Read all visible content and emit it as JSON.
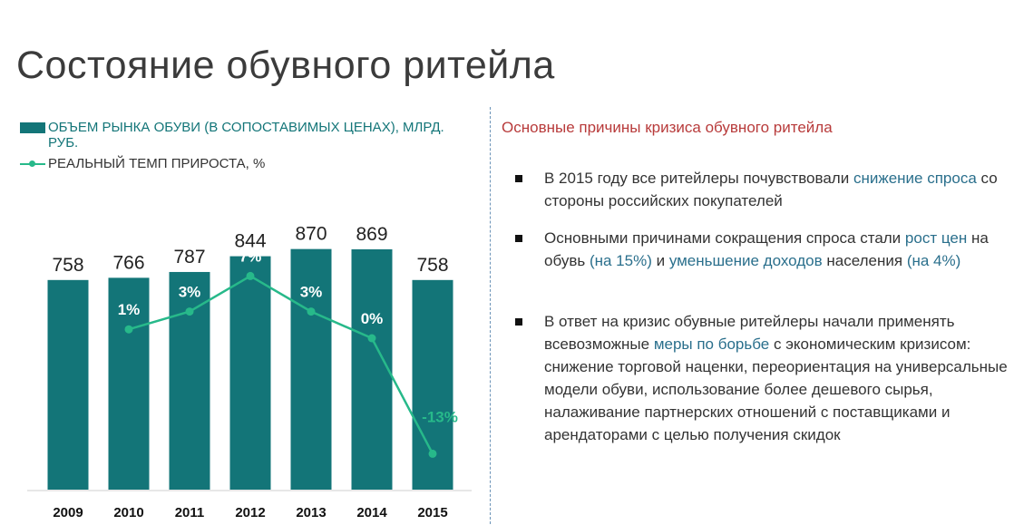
{
  "page": {
    "title": "Состояние обувного ритейла"
  },
  "legend": {
    "bars_label": "ОБЪЕМ РЫНКА ОБУВИ (В СОПОСТАВИМЫХ ЦЕНАХ), МЛРД. РУБ.",
    "line_label": "РЕАЛЬНЫЙ ТЕМП ПРИРОСТА, %"
  },
  "colors": {
    "bar": "#137578",
    "line": "#27b98a",
    "heading_red": "#b83b3b",
    "highlight": "#2a6f8c"
  },
  "chart_data": {
    "type": "bar",
    "categories": [
      "2009",
      "2010",
      "2011",
      "2012",
      "2013",
      "2014",
      "2015"
    ],
    "series": [
      {
        "type": "bar",
        "values": [
          758,
          766,
          787,
          844,
          870,
          869,
          758
        ],
        "labels": [
          "758",
          "766",
          "787",
          "844",
          "870",
          "869",
          "758"
        ]
      },
      {
        "type": "line",
        "values": [
          null,
          1,
          3,
          7,
          3,
          0,
          -13
        ],
        "labels": [
          "",
          "1%",
          "3%",
          "7%",
          "3%",
          "0%",
          "-13%"
        ]
      }
    ],
    "ylim": [
      0,
      1000
    ],
    "y2lim": [
      -15,
      20
    ],
    "legend_position": "top-left",
    "grid": false
  },
  "reasons": {
    "heading": "Основные причины кризиса обувного ритейла",
    "bullets": [
      {
        "segments": [
          {
            "text": "В 2015 году все ритейлеры почувствовали ",
            "hl": false
          },
          {
            "text": "снижение спроса",
            "hl": true
          },
          {
            "text": " со стороны  российских покупателей",
            "hl": false
          }
        ]
      },
      {
        "segments": [
          {
            "text": "Основными причинами сокращения спроса стали ",
            "hl": false
          },
          {
            "text": "рост цен",
            "hl": true
          },
          {
            "text": " на обувь ",
            "hl": false
          },
          {
            "text": "(на 15%)",
            "hl": true
          },
          {
            "text": " и ",
            "hl": false
          },
          {
            "text": "уменьшение доходов",
            "hl": true
          },
          {
            "text": " населения ",
            "hl": false
          },
          {
            "text": "(на 4%)",
            "hl": true
          }
        ]
      },
      {
        "segments": [
          {
            "text": "В ответ на кризис обувные ритейлеры начали применять всевозможные ",
            "hl": false
          },
          {
            "text": "меры по борьбе",
            "hl": true
          },
          {
            "text": " с экономическим кризисом: снижение торговой наценки, переориентация на универсальные модели обуви, использование более дешевого сырья, налаживание партнерских отношений с поставщиками и арендаторами с целью получения скидок",
            "hl": false
          }
        ]
      }
    ]
  }
}
